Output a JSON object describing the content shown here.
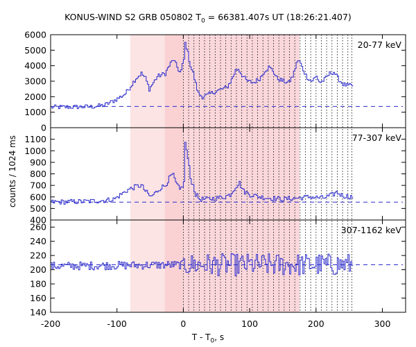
{
  "title": {
    "prefix": "KONUS-WIND S2 GRB 050802 T",
    "sub": "0",
    "suffix": " = 66381.407s UT (18:26:21.407)"
  },
  "xlabel": {
    "prefix": "T - T",
    "sub": "0",
    "suffix": ", s"
  },
  "ylabel": "counts / 1024 ms",
  "colors": {
    "curve": "#2b2bcc",
    "background_line": "#2b2bcc",
    "light_band": "#fde4e4",
    "dark_band": "#fad2d4",
    "markers": "#000000",
    "frame": "#000000"
  },
  "chart_data": {
    "type": "line",
    "x_range": [
      -200,
      335
    ],
    "x_ticks": [
      -200,
      -100,
      0,
      100,
      200,
      300
    ],
    "shaded_intervals": [
      {
        "x": [
          -80,
          -28
        ],
        "shade": "light"
      },
      {
        "x": [
          -28,
          0
        ],
        "shade": "dark_light"
      },
      {
        "x": [
          0,
          175
        ],
        "shade": "dark"
      }
    ],
    "spectral_marks_x": [
      0,
      8,
      16,
      24,
      32,
      40,
      48,
      56,
      64,
      72,
      80,
      88,
      96,
      104,
      112,
      120,
      128,
      136,
      144,
      152,
      160,
      168,
      176,
      184,
      192,
      200,
      208,
      216,
      224,
      232,
      240,
      248,
      254
    ],
    "panels": [
      {
        "label": "20-77 keV",
        "y_range": [
          0,
          6000
        ],
        "y_ticks": [
          0,
          1000,
          2000,
          3000,
          4000,
          5000,
          6000
        ],
        "x_end": 254,
        "background_level": 1370,
        "keypoints": [
          [
            -200,
            1320
          ],
          [
            -140,
            1350
          ],
          [
            -120,
            1450
          ],
          [
            -105,
            1750
          ],
          [
            -95,
            2000
          ],
          [
            -88,
            2200
          ],
          [
            -80,
            2700
          ],
          [
            -72,
            3200
          ],
          [
            -64,
            3500
          ],
          [
            -58,
            3200
          ],
          [
            -52,
            2500
          ],
          [
            -46,
            2900
          ],
          [
            -40,
            3300
          ],
          [
            -34,
            3400
          ],
          [
            -28,
            3500
          ],
          [
            -22,
            4000
          ],
          [
            -16,
            4400
          ],
          [
            -10,
            3900
          ],
          [
            -5,
            3500
          ],
          [
            0,
            4400
          ],
          [
            2,
            5450
          ],
          [
            4,
            5200
          ],
          [
            7,
            4600
          ],
          [
            10,
            4000
          ],
          [
            14,
            3500
          ],
          [
            18,
            2800
          ],
          [
            22,
            2200
          ],
          [
            28,
            2000
          ],
          [
            36,
            2100
          ],
          [
            45,
            2300
          ],
          [
            55,
            2450
          ],
          [
            65,
            2600
          ],
          [
            72,
            3100
          ],
          [
            78,
            3700
          ],
          [
            82,
            3800
          ],
          [
            88,
            3400
          ],
          [
            95,
            3000
          ],
          [
            105,
            2900
          ],
          [
            115,
            3200
          ],
          [
            122,
            3700
          ],
          [
            128,
            3900
          ],
          [
            134,
            3700
          ],
          [
            140,
            3200
          ],
          [
            150,
            3000
          ],
          [
            158,
            2900
          ],
          [
            165,
            3400
          ],
          [
            170,
            4200
          ],
          [
            174,
            4300
          ],
          [
            178,
            3900
          ],
          [
            185,
            3300
          ],
          [
            192,
            3000
          ],
          [
            200,
            3300
          ],
          [
            205,
            2900
          ],
          [
            212,
            3100
          ],
          [
            220,
            3500
          ],
          [
            226,
            3600
          ],
          [
            232,
            3200
          ],
          [
            240,
            2800
          ],
          [
            248,
            2700
          ],
          [
            254,
            2700
          ]
        ],
        "noise": 150
      },
      {
        "label": "77-307 keV",
        "y_range": [
          400,
          1200
        ],
        "y_ticks": [
          400,
          500,
          600,
          700,
          800,
          900,
          1000,
          1100
        ],
        "x_end": 254,
        "background_level": 555,
        "keypoints": [
          [
            -200,
            555
          ],
          [
            -150,
            560
          ],
          [
            -120,
            570
          ],
          [
            -105,
            580
          ],
          [
            -95,
            620
          ],
          [
            -85,
            660
          ],
          [
            -72,
            690
          ],
          [
            -64,
            700
          ],
          [
            -58,
            650
          ],
          [
            -50,
            600
          ],
          [
            -42,
            640
          ],
          [
            -35,
            680
          ],
          [
            -28,
            700
          ],
          [
            -22,
            760
          ],
          [
            -17,
            800
          ],
          [
            -12,
            720
          ],
          [
            -6,
            660
          ],
          [
            0,
            720
          ],
          [
            2,
            1080
          ],
          [
            4,
            1000
          ],
          [
            7,
            900
          ],
          [
            10,
            760
          ],
          [
            14,
            700
          ],
          [
            18,
            620
          ],
          [
            24,
            580
          ],
          [
            35,
            580
          ],
          [
            50,
            590
          ],
          [
            60,
            600
          ],
          [
            70,
            620
          ],
          [
            78,
            690
          ],
          [
            84,
            720
          ],
          [
            90,
            650
          ],
          [
            100,
            620
          ],
          [
            115,
            600
          ],
          [
            130,
            590
          ],
          [
            150,
            580
          ],
          [
            170,
            590
          ],
          [
            190,
            600
          ],
          [
            210,
            590
          ],
          [
            225,
            620
          ],
          [
            230,
            640
          ],
          [
            240,
            610
          ],
          [
            254,
            600
          ]
        ],
        "noise": 22
      },
      {
        "label": "307-1162 keV",
        "y_range": [
          140,
          270
        ],
        "y_ticks": [
          140,
          160,
          180,
          200,
          220,
          240,
          260
        ],
        "x_end": 254,
        "background_level": 207,
        "keypoints": [
          [
            -200,
            205
          ],
          [
            -100,
            206
          ],
          [
            0,
            207
          ],
          [
            254,
            207
          ]
        ],
        "noise_pre": 6,
        "noise_post": 16
      }
    ]
  }
}
